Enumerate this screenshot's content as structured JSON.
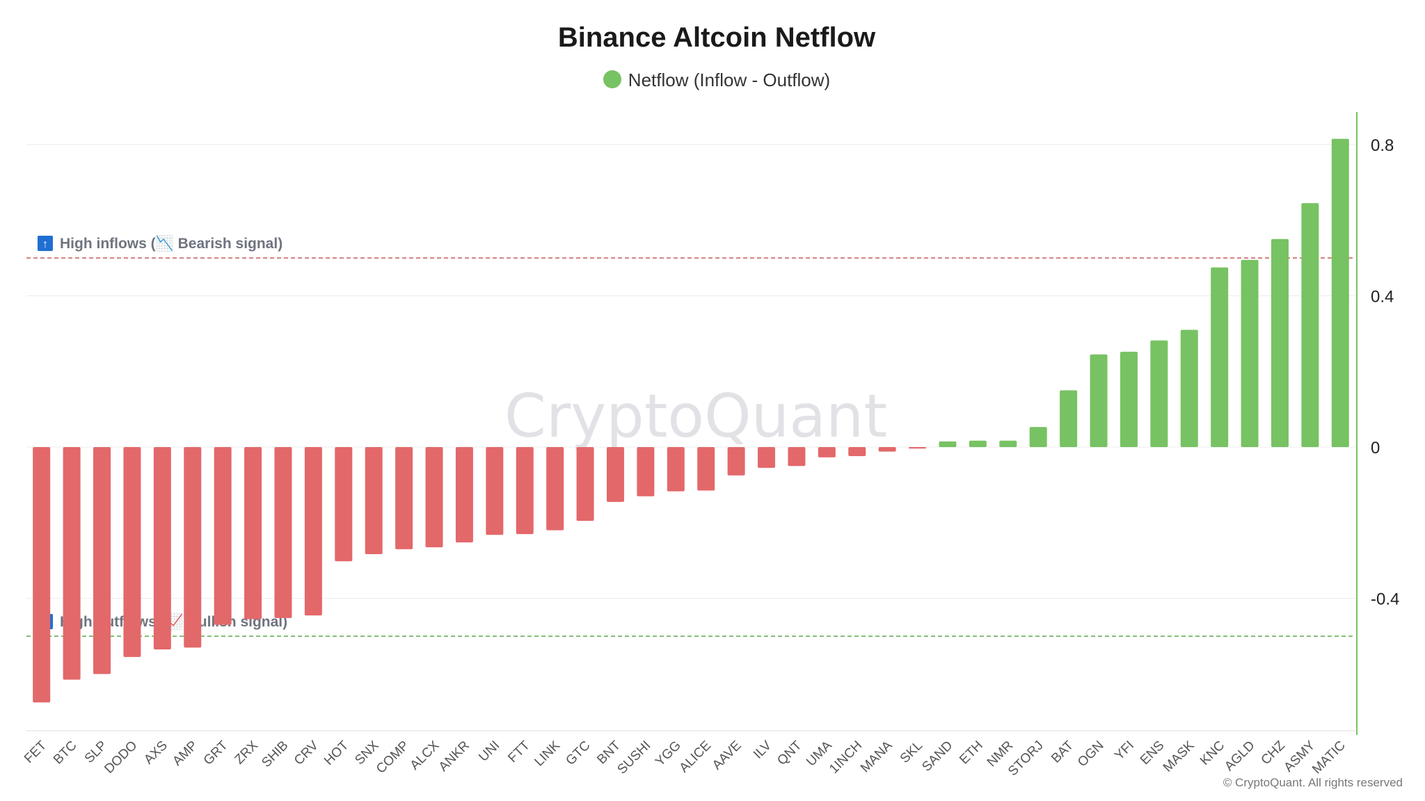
{
  "header": {
    "title": "Binance Altcoin Netflow"
  },
  "legend": {
    "label": "Netflow (Inflow - Outflow)"
  },
  "watermark": "CryptoQuant",
  "copyright": "© CryptoQuant. All rights reserved",
  "colors": {
    "positive": "#77c263",
    "negative": "#e3686a",
    "axis": "#77c263"
  },
  "thresholds": {
    "high": {
      "value": 0.5,
      "prefix": "High inflows",
      "signal": "Bearish signal",
      "color": "#c85a5a"
    },
    "low": {
      "value": -0.5,
      "prefix": "High outflows",
      "signal": "Bullish signal",
      "color": "#5aa84a"
    }
  },
  "chart_data": {
    "type": "bar",
    "title": "Binance Altcoin Netflow",
    "legend_position": "top",
    "grid": true,
    "ylim": [
      -0.75,
      0.88
    ],
    "yticks": [
      0.8,
      0.4,
      0,
      -0.4
    ],
    "ytick_labels": [
      "0.8",
      "0.4",
      "0",
      "-0.4"
    ],
    "categories": [
      "FET",
      "BTC",
      "SLP",
      "DODO",
      "AXS",
      "AMP",
      "GRT",
      "ZRX",
      "SHIB",
      "CRV",
      "HOT",
      "SNX",
      "COMP",
      "ALCX",
      "ANKR",
      "UNI",
      "FTT",
      "LINK",
      "GTC",
      "BNT",
      "SUSHI",
      "YGG",
      "ALICE",
      "AAVE",
      "ILV",
      "QNT",
      "UMA",
      "1INCH",
      "MANA",
      "SKL",
      "SAND",
      "ETH",
      "NMR",
      "STORJ",
      "BAT",
      "OGN",
      "YFI",
      "ENS",
      "MASK",
      "KNC",
      "AGLD",
      "CHZ",
      "ASMY",
      "MATIC"
    ],
    "series": [
      {
        "name": "Netflow (Inflow - Outflow)",
        "values": [
          -0.675,
          -0.615,
          -0.6,
          -0.555,
          -0.535,
          -0.53,
          -0.47,
          -0.455,
          -0.452,
          -0.445,
          -0.302,
          -0.283,
          -0.27,
          -0.265,
          -0.252,
          -0.232,
          -0.23,
          -0.22,
          -0.195,
          -0.145,
          -0.13,
          -0.117,
          -0.115,
          -0.075,
          -0.055,
          -0.05,
          -0.027,
          -0.024,
          -0.012,
          -0.004,
          0.015,
          0.017,
          0.017,
          0.053,
          0.15,
          0.245,
          0.252,
          0.282,
          0.31,
          0.475,
          0.495,
          0.55,
          0.645,
          0.815
        ]
      }
    ]
  }
}
